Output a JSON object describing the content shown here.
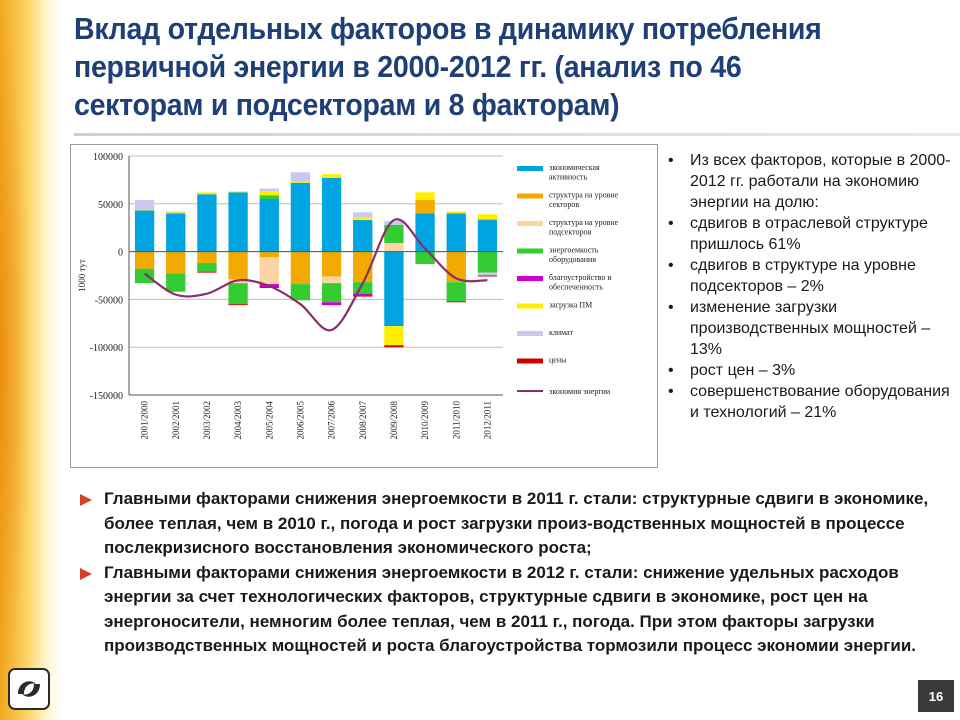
{
  "slide": {
    "title": "Вклад отдельных факторов в динамику потребления первичной энергии в 2000-2012 гг. (анализ по 46 секторам и подсекторам и 8 факторам)",
    "page_number": "16",
    "bullets": [
      "Из всех факторов, которые в 2000-2012 гг. работали на экономию энергии на долю:",
      "сдвигов в отраслевой структуре пришлось 61%",
      "сдвигов в структуре на уровне подсекторов – 2%",
      "изменение загрузки производственных мощностей – 13%",
      "рост цен – 3%",
      "совершенствование оборудования и технологий – 21%"
    ],
    "paragraphs": [
      "Главными факторами снижения энергоемкости в 2011 г. стали: структурные сдвиги в экономике, более теплая, чем в 2010 г., погода и рост загрузки произ-водственных мощностей в процессе послекризисного восстановления экономического роста;",
      "Главными факторами снижения энергоемкости в 2012 г. стали: снижение удельных расходов энергии за счет технологических факторов, структурные сдвиги в экономике, рост цен на энергоносители, немногим более теплая, чем в 2011 г., погода. При этом факторы загрузки производственных мощностей и роста благоустройства тормозили процесс экономии энергии."
    ],
    "logo_icon": "organization-logo-icon"
  },
  "chart_data": {
    "type": "bar",
    "stacked": true,
    "ylabel": "1000 тут",
    "ylim": [
      -150000,
      100000
    ],
    "yticks": [
      100000,
      50000,
      0,
      -50000,
      -100000,
      -150000
    ],
    "ytick_labels": [
      "100000",
      "50000",
      "0",
      "-50000",
      "-100000",
      "-150000"
    ],
    "grid": "horizontal",
    "legend_position": "right",
    "categories": [
      "2001/2000",
      "2002/2001",
      "2003/2002",
      "2004/2003",
      "2005/2004",
      "2006/2005",
      "2007/2006",
      "2008/2007",
      "2009/2008",
      "2010/2009",
      "2011/2010",
      "2012/2011"
    ],
    "series": [
      {
        "name": "экономическая активность",
        "color": "#00a4e0",
        "values": [
          43000,
          40000,
          60000,
          62000,
          55000,
          72000,
          77000,
          33000,
          -78000,
          40000,
          40000,
          33000
        ]
      },
      {
        "name": "структура на уровне секторов",
        "color": "#f2a900",
        "values": [
          -18000,
          -23000,
          -12000,
          -29000,
          -6000,
          -34000,
          -26000,
          -32000,
          0,
          14000,
          -32000,
          1000
        ]
      },
      {
        "name": "структура на уровне подсекторов",
        "color": "#fcd5a5",
        "values": [
          0,
          0,
          0,
          -4000,
          -28000,
          0,
          -7000,
          0,
          9000,
          0,
          0,
          0
        ]
      },
      {
        "name": "энергоемкость оборудования",
        "color": "#33cc33",
        "values": [
          -15000,
          -19000,
          -9000,
          -22000,
          4000,
          -17000,
          -20000,
          -12000,
          19000,
          -13000,
          -20000,
          -22000
        ]
      },
      {
        "name": "благоустройство и обеспеченность",
        "color": "#cc00cc",
        "values": [
          0,
          0,
          0,
          0,
          -3000,
          0,
          -3000,
          -2000,
          0,
          0,
          0,
          0
        ]
      },
      {
        "name": "загрузка ПМ",
        "color": "#ffee00",
        "values": [
          1000,
          1000,
          2000,
          1000,
          4000,
          1000,
          4000,
          3000,
          -20000,
          8000,
          2000,
          5000
        ]
      },
      {
        "name": "климат",
        "color": "#c8c8f0",
        "values": [
          10000,
          1000,
          0,
          0,
          3000,
          10000,
          0,
          5000,
          4000,
          0,
          0,
          -3000
        ]
      },
      {
        "name": "цены",
        "color": "#cc0000",
        "values": [
          0,
          0,
          -1000,
          -1000,
          -1000,
          0,
          0,
          -1000,
          -2000,
          0,
          -1000,
          -1000
        ]
      }
    ],
    "line": {
      "name": "экономия энергии",
      "color": "#8b2e6e",
      "values": [
        -23000,
        -45000,
        -44000,
        -30000,
        -36000,
        -55000,
        -82000,
        -33000,
        33000,
        3000,
        -28000,
        -30000
      ]
    }
  }
}
